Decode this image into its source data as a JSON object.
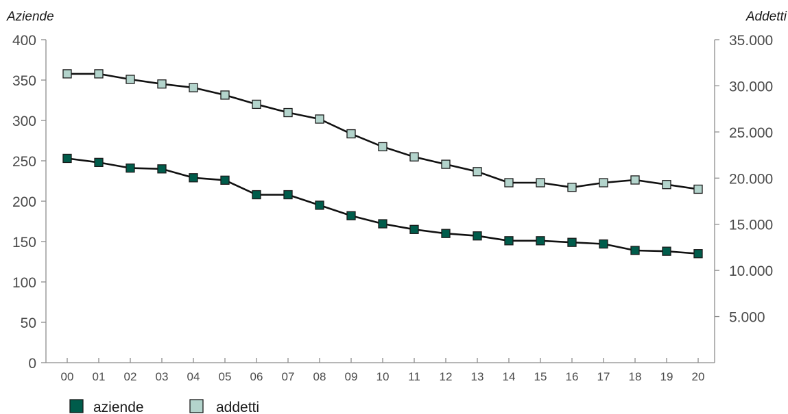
{
  "chart_data": {
    "type": "line",
    "left_axis_title": "Aziende",
    "right_axis_title": "Addetti",
    "x": [
      "00",
      "01",
      "02",
      "03",
      "04",
      "05",
      "06",
      "07",
      "08",
      "09",
      "10",
      "11",
      "12",
      "13",
      "14",
      "15",
      "16",
      "17",
      "18",
      "19",
      "20"
    ],
    "y_left": {
      "ylim": [
        0,
        400
      ],
      "ticks": [
        0,
        50,
        100,
        150,
        200,
        250,
        300,
        350,
        400
      ],
      "tick_labels": [
        "0",
        "50",
        "100",
        "150",
        "200",
        "250",
        "300",
        "350",
        "400"
      ]
    },
    "y_right": {
      "ylim": [
        0,
        35000
      ],
      "ticks": [
        5000,
        10000,
        15000,
        20000,
        25000,
        30000,
        35000
      ],
      "tick_labels": [
        "5.000",
        "10.000",
        "15.000",
        "20.000",
        "25.000",
        "30.000",
        "35.000"
      ]
    },
    "series": [
      {
        "name": "aziende",
        "axis": "left",
        "color": "#005c4b",
        "values": [
          253,
          248,
          241,
          240,
          229,
          226,
          208,
          208,
          195,
          182,
          172,
          165,
          160,
          157,
          151,
          151,
          149,
          147,
          139,
          138,
          135
        ]
      },
      {
        "name": "addetti",
        "axis": "right",
        "color": "#b3d4cc",
        "values": [
          31300,
          31300,
          30700,
          30200,
          29800,
          29000,
          28000,
          27100,
          26400,
          24800,
          23400,
          22300,
          21500,
          20700,
          19500,
          19500,
          19000,
          19500,
          19800,
          19300,
          18800
        ]
      }
    ],
    "grid": false,
    "legend_position": "bottom-left"
  }
}
